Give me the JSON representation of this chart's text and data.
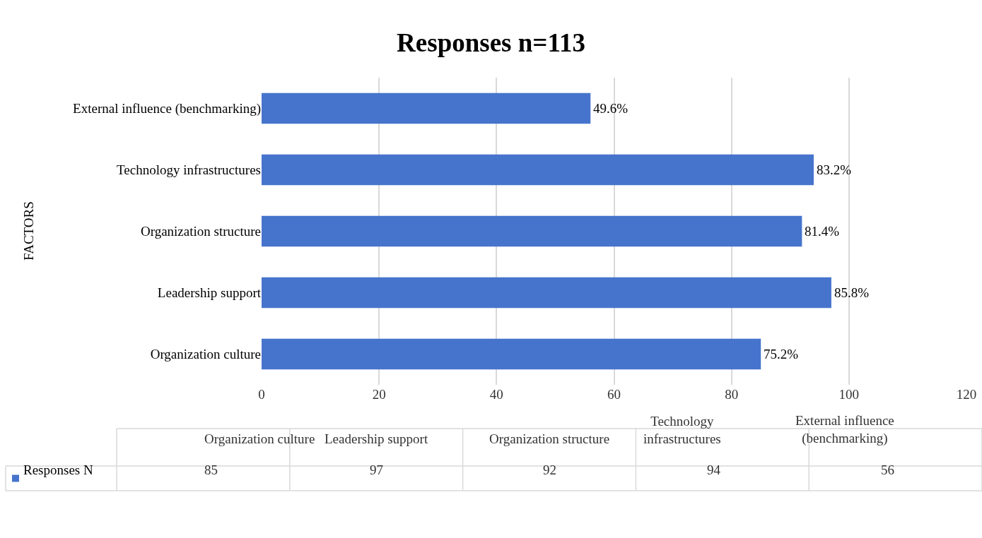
{
  "chart_data": {
    "type": "bar",
    "orientation": "horizontal",
    "title": "Responses n=113",
    "ylabel": "FACTORS",
    "categories": [
      "External influence (benchmarking)",
      "Technology infrastructures",
      "Organization structure",
      "Leadership support",
      "Organization culture"
    ],
    "series": [
      {
        "name": "Responses N",
        "color": "#4674cc",
        "values": [
          56,
          94,
          92,
          97,
          85
        ]
      }
    ],
    "annotations": [
      {
        "text": "49.6%",
        "x": 56,
        "y": "External influence (benchmarking)"
      },
      {
        "text": "83.2%",
        "x": 94,
        "y": "Technology infrastructures"
      },
      {
        "text": "81.4%",
        "x": 92,
        "y": "Organization structure"
      },
      {
        "text": "85.8%",
        "x": 97,
        "y": "Leadership support"
      },
      {
        "text": "75.2%",
        "x": 85,
        "y": "Organization culture"
      },
      "85",
      "97",
      "92",
      "94",
      "56"
    ],
    "xlim": [
      0,
      120
    ],
    "xticks": [
      0,
      20,
      40,
      60,
      80,
      100,
      120
    ],
    "grid": "x"
  }
}
